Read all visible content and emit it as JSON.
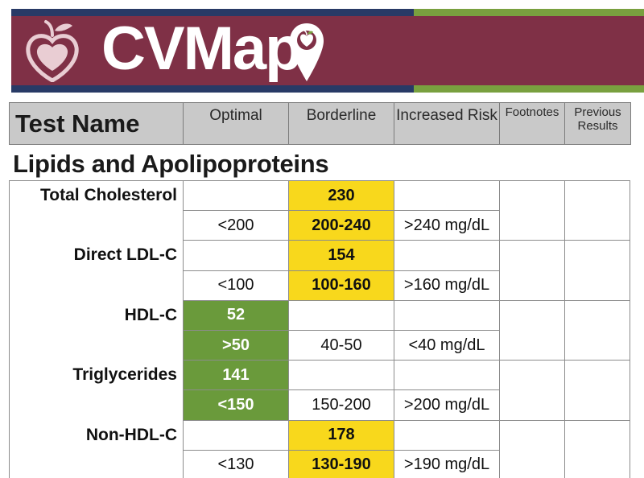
{
  "brand": {
    "title": "CVMap",
    "colors": {
      "maroon": "#7f3046",
      "navy": "#283a66",
      "green": "#79a03f",
      "highlight_yellow": "#f8d81c",
      "highlight_green": "#6a9a3b"
    }
  },
  "icons": [
    "apple-heart-logo-icon",
    "map-pin-apple-icon"
  ],
  "header": {
    "test_name": "Test Name",
    "optimal": "Optimal",
    "borderline": "Borderline",
    "increased_risk": "Increased Risk",
    "footnotes": "Footnotes",
    "previous_results": "Previous Results"
  },
  "section": {
    "title": "Lipids and Apolipoproteins"
  },
  "tests": [
    {
      "name": "Total Cholesterol",
      "result": "230",
      "result_zone": "borderline",
      "optimal": "<200",
      "borderline": "200-240",
      "increased_risk": ">240 mg/dL"
    },
    {
      "name": "Direct LDL-C",
      "result": "154",
      "result_zone": "borderline",
      "optimal": "<100",
      "borderline": "100-160",
      "increased_risk": ">160 mg/dL"
    },
    {
      "name": "HDL-C",
      "result": "52",
      "result_zone": "optimal",
      "optimal": ">50",
      "borderline": "40-50",
      "increased_risk": "<40 mg/dL"
    },
    {
      "name": "Triglycerides",
      "result": "141",
      "result_zone": "optimal",
      "optimal": "<150",
      "borderline": "150-200",
      "increased_risk": ">200 mg/dL"
    },
    {
      "name": "Non-HDL-C",
      "result": "178",
      "result_zone": "borderline",
      "optimal": "<130",
      "borderline": "130-190",
      "increased_risk": ">190 mg/dL"
    }
  ]
}
